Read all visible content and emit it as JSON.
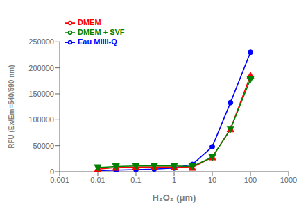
{
  "chart_data": {
    "type": "line",
    "x": [
      0.01,
      0.03,
      0.1,
      0.3,
      1,
      3,
      10,
      30,
      100
    ],
    "series": [
      {
        "name": "Eau Milli-Q",
        "color": "#0000FF",
        "marker": "circle",
        "values": [
          2000,
          3000,
          4000,
          5000,
          7000,
          14000,
          48000,
          133000,
          230000
        ]
      },
      {
        "name": "DMEM",
        "color": "#FF0000",
        "marker": "triangle-up",
        "values": [
          5000,
          8000,
          9000,
          9000,
          9000,
          8000,
          28000,
          82000,
          185000
        ]
      },
      {
        "name": "DMEM + SVF",
        "color": "#008000",
        "marker": "triangle-down",
        "values": [
          8000,
          10000,
          11000,
          11000,
          11000,
          10000,
          28000,
          82000,
          178000
        ]
      }
    ],
    "xlabel": "H₂O₂ (μm)",
    "ylabel": "RFU (Ex/Em=540/590 nm)",
    "xlim": [
      0.001,
      1000
    ],
    "ylim": [
      0,
      250000
    ],
    "xticks": [
      0.001,
      0.01,
      0.1,
      1,
      10,
      100,
      1000
    ],
    "yticks": [
      0,
      50000,
      100000,
      150000,
      200000,
      250000
    ],
    "log": "x",
    "grid": false,
    "legend": "upper left"
  }
}
